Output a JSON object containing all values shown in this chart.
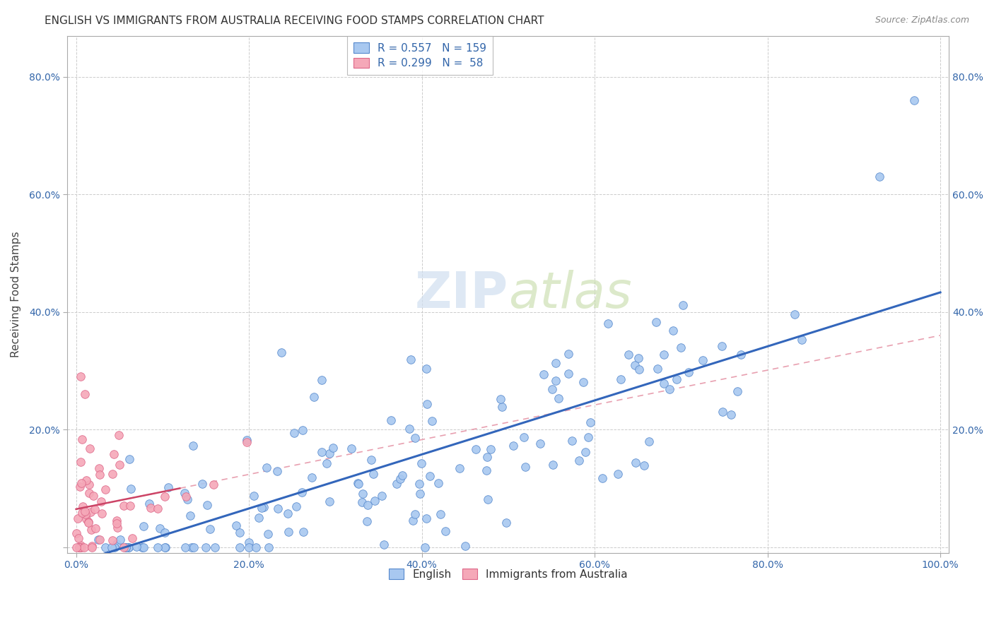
{
  "title": "ENGLISH VS IMMIGRANTS FROM AUSTRALIA RECEIVING FOOD STAMPS CORRELATION CHART",
  "source": "Source: ZipAtlas.com",
  "xlabel": "",
  "ylabel": "Receiving Food Stamps",
  "legend_labels": [
    "English",
    "Immigrants from Australia"
  ],
  "legend_r": [
    "R = 0.557",
    "R = 0.299"
  ],
  "legend_n": [
    "N = 159",
    "N =  58"
  ],
  "color_english": "#a8c8f0",
  "color_immigrants": "#f5a8b8",
  "edge_color_english": "#5588cc",
  "edge_color_immigrants": "#dd6688",
  "trend_english_color": "#3366bb",
  "trend_immigrants_solid_color": "#cc4466",
  "trend_immigrants_dash_color": "#e8a0b0",
  "watermark_text": "ZIPatlas",
  "xlim": [
    -0.01,
    1.01
  ],
  "ylim": [
    -0.01,
    0.87
  ],
  "xtick_vals": [
    0.0,
    0.2,
    0.4,
    0.6,
    0.8,
    1.0
  ],
  "xtick_labels": [
    "0.0%",
    "20.0%",
    "40.0%",
    "60.0%",
    "80.0%",
    "100.0%"
  ],
  "ytick_vals": [
    0.0,
    0.2,
    0.4,
    0.6,
    0.8
  ],
  "ytick_labels": [
    "",
    "20.0%",
    "40.0%",
    "60.0%",
    "80.0%"
  ],
  "english_seed": 12345,
  "immigrants_seed": 67890
}
